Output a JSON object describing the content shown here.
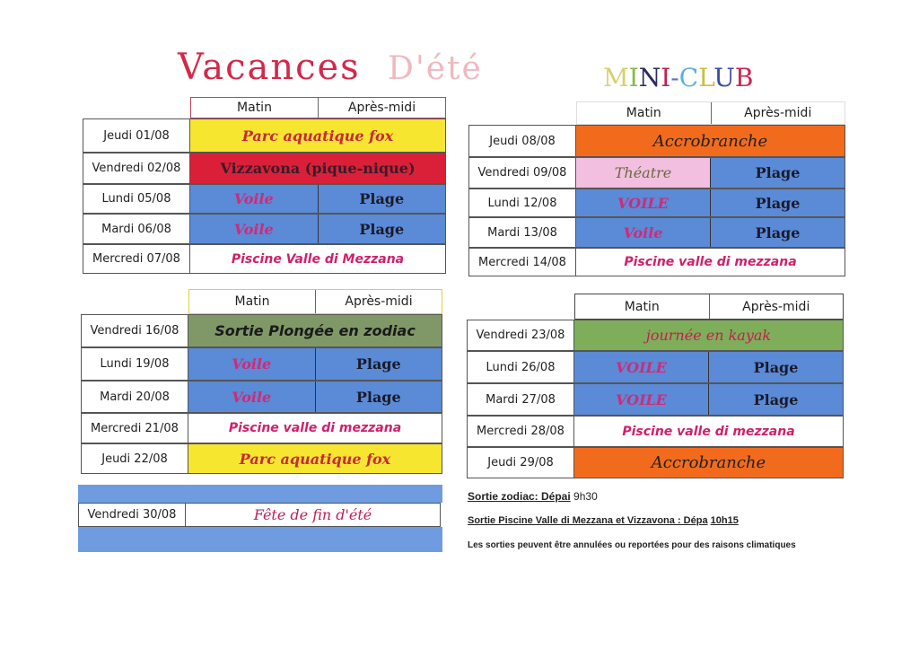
{
  "header": {
    "title_part1": "Vacances",
    "title_part2": "D'été",
    "club_title": "MINI-CLUB",
    "club_letters": [
      [
        "M",
        "#d8d070"
      ],
      [
        "I",
        "#88b848"
      ],
      [
        "N",
        "#2a2a60"
      ],
      [
        "I",
        "#c02050"
      ],
      [
        "-",
        "#6a6ac0"
      ],
      [
        "C",
        "#5ab0e0"
      ],
      [
        "L",
        "#c8c040"
      ],
      [
        "U",
        "#3a4aa0"
      ],
      [
        "B",
        "#d02050"
      ]
    ]
  },
  "columns": {
    "morning": "Matin",
    "afternoon": "Après-midi"
  },
  "tables": [
    {
      "rows": [
        {
          "date": "Jeudi 01/08",
          "cells": [
            {
              "text": "Parc aquatique fox",
              "style": "yellow"
            }
          ]
        },
        {
          "date": "Vendredi 02/08",
          "cells": [
            {
              "text": "Vizzavona (pique-nique)",
              "style": "red"
            }
          ]
        },
        {
          "date": "Lundi 05/08",
          "cells": [
            {
              "text": "Voile",
              "style": "blue-voile"
            },
            {
              "text": "Plage",
              "style": "blue"
            }
          ]
        },
        {
          "date": "Mardi 06/08",
          "cells": [
            {
              "text": "Voile",
              "style": "blue-voile"
            },
            {
              "text": "Plage",
              "style": "blue"
            }
          ]
        },
        {
          "date": "Mercredi 07/08",
          "cells": [
            {
              "text": "Piscine Valle di Mezzana",
              "style": "white"
            }
          ]
        }
      ]
    },
    {
      "rows": [
        {
          "date": "Jeudi 08/08",
          "cells": [
            {
              "text": "Accrobranche",
              "style": "orange"
            }
          ]
        },
        {
          "date": "Vendredi 09/08",
          "cells": [
            {
              "text": "Théatre",
              "style": "pink"
            },
            {
              "text": "Plage",
              "style": "blue"
            }
          ]
        },
        {
          "date": "Lundi 12/08",
          "cells": [
            {
              "text": "VOILE",
              "style": "blue-voile"
            },
            {
              "text": "Plage",
              "style": "blue"
            }
          ]
        },
        {
          "date": "Mardi 13/08",
          "cells": [
            {
              "text": "Voile",
              "style": "blue-voile"
            },
            {
              "text": "Plage",
              "style": "blue"
            }
          ]
        },
        {
          "date": "Mercredi 14/08",
          "cells": [
            {
              "text": "Piscine valle di mezzana",
              "style": "white"
            }
          ]
        }
      ]
    },
    {
      "rows": [
        {
          "date": "Vendredi 16/08",
          "cells": [
            {
              "text": "Sortie Plongée en zodiac",
              "style": "olive"
            }
          ]
        },
        {
          "date": "Lundi 19/08",
          "cells": [
            {
              "text": "Voile",
              "style": "blue-voile"
            },
            {
              "text": "Plage",
              "style": "blue"
            }
          ]
        },
        {
          "date": "Mardi 20/08",
          "cells": [
            {
              "text": "Voile",
              "style": "blue-voile"
            },
            {
              "text": "Plage",
              "style": "blue"
            }
          ]
        },
        {
          "date": "Mercredi 21/08",
          "cells": [
            {
              "text": "Piscine valle di mezzana",
              "style": "white"
            }
          ]
        },
        {
          "date": "Jeudi 22/08",
          "cells": [
            {
              "text": "Parc aquatique fox",
              "style": "yellow"
            }
          ]
        }
      ]
    },
    {
      "rows": [
        {
          "date": "Vendredi 23/08",
          "cells": [
            {
              "text": "journée en kayak",
              "style": "green"
            }
          ]
        },
        {
          "date": "Lundi 26/08",
          "cells": [
            {
              "text": "VOILE",
              "style": "blue-voile"
            },
            {
              "text": "Plage",
              "style": "blue"
            }
          ]
        },
        {
          "date": "Mardi 27/08",
          "cells": [
            {
              "text": "VOILE",
              "style": "blue-voile"
            },
            {
              "text": "Plage",
              "style": "blue"
            }
          ]
        },
        {
          "date": "Mercredi 28/08",
          "cells": [
            {
              "text": "Piscine valle di mezzana",
              "style": "white"
            }
          ]
        },
        {
          "date": "Jeudi 29/08",
          "cells": [
            {
              "text": "Accrobranche",
              "style": "orange"
            }
          ]
        }
      ]
    }
  ],
  "final": {
    "date": "Vendredi 30/08",
    "text": "Fête de fin d'été"
  },
  "notes": {
    "zodiac_label": "Sortie zodiac: Dépai",
    "zodiac_time": "9h30",
    "piscine_label": "Sortie Piscine Valle di Mezzana et Vizzavona : Dépa",
    "piscine_time": "10h15",
    "disclaimer": "Les sorties peuvent être annulées ou reportées pour des raisons climatiques"
  }
}
